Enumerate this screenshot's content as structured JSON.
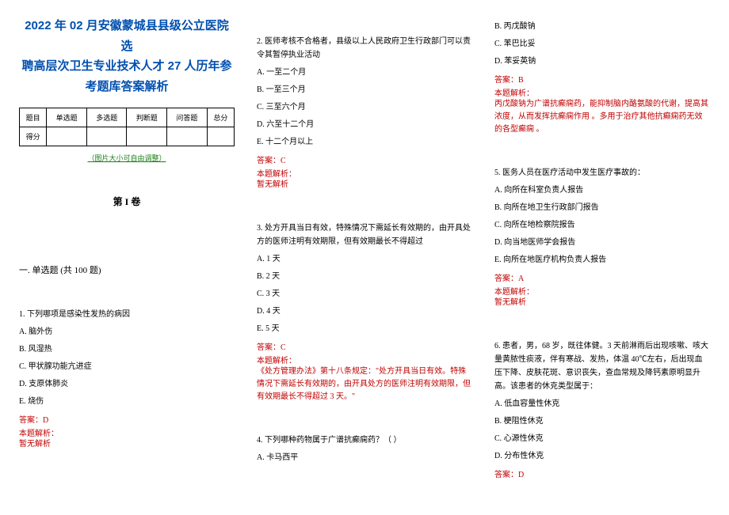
{
  "title_lines": [
    "2022 年 02 月安徽蒙城县县级公立医院选",
    "聘高层次卫生专业技术人才 27 人历年参",
    "考题库答案解析"
  ],
  "table": {
    "row1": [
      "题目",
      "单选题",
      "多选题",
      "判断题",
      "问答题",
      "总分"
    ],
    "row2": [
      "得分",
      "",
      "",
      "",
      "",
      ""
    ]
  },
  "note": "（图片大小可自由调整）",
  "section1": "第 I 卷",
  "block1": "一. 单选题 (共 100 题)",
  "q1": {
    "stem": "1. 下列哪项是感染性发热的病因",
    "A": "A. 脑外伤",
    "B": "B. 风湿热",
    "C": "C. 甲状腺功能亢进症",
    "D": "D. 支原体肺炎",
    "E": "E. 烧伤",
    "answer": "答案：D",
    "ana_label": "本题解析：",
    "ana": "暂无解析"
  },
  "q2": {
    "stem": "2. 医师考核不合格者，县级以上人民政府卫生行政部门可以责令其暂停执业活动",
    "A": "A. 一至二个月",
    "B": "B. 一至三个月",
    "C": "C. 三至六个月",
    "D": "D. 六至十二个月",
    "E": "E. 十二个月以上",
    "answer": "答案：C",
    "ana_label": "本题解析：",
    "ana": "暂无解析"
  },
  "q3": {
    "stem": "3. 处方开具当日有效，特殊情况下需延长有效期的，由开具处方的医师注明有效期限，但有效期最长不得超过",
    "A": "A. 1 天",
    "B": "B. 2 天",
    "C": "C. 3 天",
    "D": "D. 4 天",
    "E": "E. 5 天",
    "answer": "答案：C",
    "ana_label": "本题解析：",
    "ana": "《处方管理办法》第十八条规定：\"处方开具当日有效。特殊情况下需延长有效期的，由开具处方的医师注明有效期限，但有效期最长不得超过 3 天。\""
  },
  "q4": {
    "stem": "4. 下列哪种药物属于广谱抗癫痫药？（  ）",
    "A": "A. 卡马西平",
    "B": "B. 丙戊酸钠",
    "C": "C. 苯巴比妥",
    "D": "D. 苯妥英钠",
    "answer": "答案：B",
    "ana_label": "本题解析：",
    "ana": "丙戊酸钠为广谱抗癫痫药，能抑制脑内酪氨酸的代谢，提高其浓度，从而发挥抗癫痫作用 。多用于治疗其他抗癫痫药无效的各型癫痫 。"
  },
  "q5": {
    "stem": "5. 医务人员在医疗活动中发生医疗事故的：",
    "A": "A. 向所在科室负责人报告",
    "B": "B. 向所在地卫生行政部门报告",
    "C": "C. 向所在地检察院报告",
    "D": "D. 向当地医师学会报告",
    "E": "E. 向所在地医疗机构负责人报告",
    "answer": "答案：A",
    "ana_label": "本题解析：",
    "ana": "暂无解析"
  },
  "q6": {
    "stem": "6.  患者，男，68 岁，既往体健。3 天前淋雨后出现咳嗽、咳大量黄脓性痰液，伴有寒战、发热，体温 40℃左右，后出现血压下降、皮肤花斑、意识丧失，查血常规及降钙素原明显升高。该患者的休克类型属于：",
    "A": "A. 低血容量性休克",
    "B": "B. 梗阻性休克",
    "C": "C. 心源性休克",
    "D": "D. 分布性休克",
    "answer": "答案：D"
  }
}
